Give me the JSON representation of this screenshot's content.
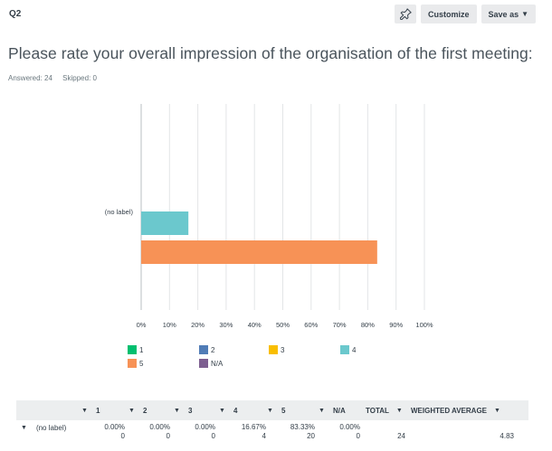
{
  "question": {
    "number": "Q2",
    "title": "Please rate your overall impression of the organisation of the first meeting:",
    "answered": "Answered: 24",
    "skipped": "Skipped: 0"
  },
  "toolbar": {
    "pin_icon": "pin-icon",
    "customize_label": "Customize",
    "save_as_label": "Save as"
  },
  "chart_data": {
    "type": "bar",
    "orientation": "horizontal",
    "categories": [
      "(no label)"
    ],
    "series": [
      {
        "name": "4",
        "color": "#6bc8cd",
        "values": [
          16.67
        ]
      },
      {
        "name": "5",
        "color": "#f79256",
        "values": [
          83.33
        ]
      }
    ],
    "xlim": [
      0,
      100
    ],
    "xticks": [
      "0%",
      "10%",
      "20%",
      "30%",
      "40%",
      "50%",
      "60%",
      "70%",
      "80%",
      "90%",
      "100%"
    ],
    "grid": true,
    "legend": [
      {
        "label": "1",
        "color": "#00bf6f"
      },
      {
        "label": "2",
        "color": "#507cb6"
      },
      {
        "label": "3",
        "color": "#f9be00"
      },
      {
        "label": "4",
        "color": "#6bc8cd"
      },
      {
        "label": "5",
        "color": "#f79256"
      },
      {
        "label": "N/A",
        "color": "#7d5e90"
      }
    ],
    "legend_position": "bottom"
  },
  "table": {
    "headers": [
      "1",
      "2",
      "3",
      "4",
      "5",
      "N/A",
      "TOTAL",
      "WEIGHTED AVERAGE"
    ],
    "row": {
      "label": "(no label)",
      "percents": [
        "0.00%",
        "0.00%",
        "0.00%",
        "16.67%",
        "83.33%",
        "0.00%"
      ],
      "counts": [
        "0",
        "0",
        "0",
        "4",
        "20",
        "0"
      ],
      "total": "24",
      "weighted_average": "4.83"
    }
  }
}
